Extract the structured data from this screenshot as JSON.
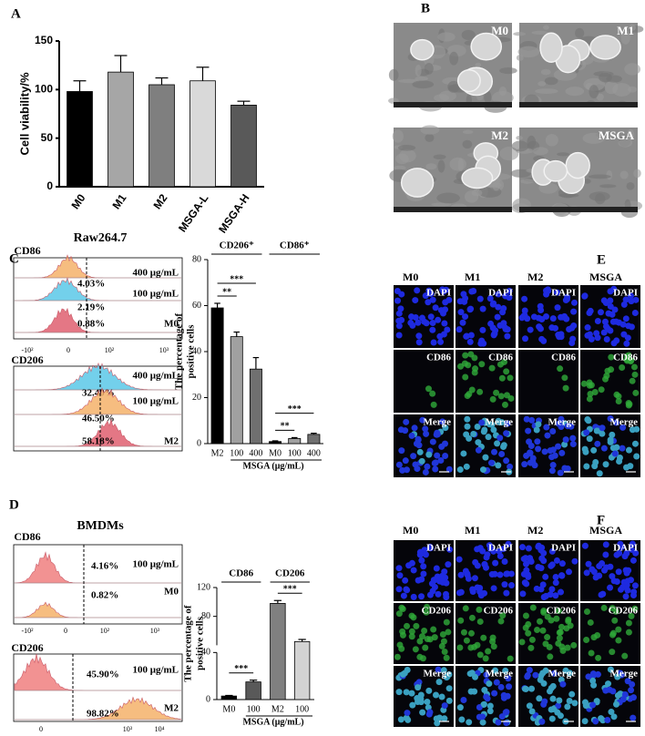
{
  "panel_labels": [
    "A",
    "B",
    "C",
    "D",
    "E",
    "F"
  ],
  "chart_data": [
    {
      "type": "bar",
      "ylabel": "Cell viability/%",
      "categories": [
        "M0",
        "M1",
        "M2",
        "MSGA-L",
        "MSGA-H"
      ],
      "values": [
        98,
        118,
        105,
        109,
        84
      ],
      "errors": [
        11,
        17,
        7,
        14,
        4
      ],
      "colors": [
        "#000000",
        "#a6a6a6",
        "#7f7f7f",
        "#d9d9d9",
        "#595959"
      ],
      "ylim": [
        0,
        150
      ],
      "yticks": [
        0,
        50,
        100,
        150
      ]
    },
    {
      "type": "bar",
      "ylabel": [
        "The percentage of",
        "positive cells"
      ],
      "xlabel": "MSGA (μg/mL)",
      "categories": [
        "M2",
        "100",
        "400",
        "M0",
        "100",
        "400"
      ],
      "values": [
        59,
        46.5,
        32.4,
        0.9,
        2.2,
        4
      ],
      "errors": [
        2,
        2,
        5,
        0.3,
        0.4,
        0.5
      ],
      "colors": [
        "#000000",
        "#a0a0a0",
        "#707070",
        "#000000",
        "#a0a0a0",
        "#707070"
      ],
      "ylim": [
        0,
        80
      ],
      "yticks": [
        0,
        20,
        40,
        60,
        80
      ],
      "groups": [
        {
          "label": "CD206⁺",
          "from": 0,
          "to": 2
        },
        {
          "label": "CD86⁺",
          "from": 3,
          "to": 5
        }
      ],
      "annotations": [
        {
          "label": "**",
          "from": 0,
          "to": 1
        },
        {
          "label": "***",
          "from": 0,
          "to": 2
        },
        {
          "label": "**",
          "from": 3,
          "to": 4
        },
        {
          "label": "***",
          "from": 3,
          "to": 5
        }
      ]
    },
    {
      "type": "bar",
      "ylabel": [
        "The percentage of",
        "positive cells"
      ],
      "xlabel": "MSGA (μg/mL)",
      "categories": [
        "M0",
        "100",
        "M2",
        "100"
      ],
      "values": [
        3,
        15,
        98,
        45
      ],
      "errors": [
        0.5,
        1.5,
        4,
        3
      ],
      "colors": [
        "#000000",
        "#595959",
        "#808080",
        "#d3d3d3"
      ],
      "ylim": [
        0,
        120
      ],
      "ybreak": 40,
      "yticks": [
        0,
        40,
        80,
        120
      ],
      "groups": [
        {
          "label": "CD86",
          "from": 0,
          "to": 1
        },
        {
          "label": "CD206",
          "from": 2,
          "to": 3
        }
      ],
      "annotations": [
        {
          "label": "***",
          "from": 0,
          "to": 1
        },
        {
          "label": "***",
          "from": 2,
          "to": 3
        }
      ]
    }
  ],
  "sem": [
    "M0",
    "M1",
    "M2",
    "MSGA"
  ],
  "flow": [
    {
      "title": "Raw264.7",
      "blocks": [
        {
          "marker": "CD86",
          "ticks": [
            "-10²",
            "0",
            "10²",
            "10³"
          ],
          "rows": [
            {
              "percent": "4.03%",
              "label": "400 μg/mL",
              "color": "#f5b26b"
            },
            {
              "percent": "2.19%",
              "label": "100 μg/mL",
              "color": "#5bc8e8"
            },
            {
              "percent": "0.88%",
              "label": "M0",
              "color": "#e06070"
            }
          ]
        },
        {
          "marker": "CD206",
          "ticks": [],
          "rows": [
            {
              "percent": "32.40%",
              "label": "400 μg/mL",
              "color": "#5bc8e8"
            },
            {
              "percent": "46.50%",
              "label": "100 μg/mL",
              "color": "#f5b26b"
            },
            {
              "percent": "58.18%",
              "label": "M2",
              "color": "#e06070"
            }
          ]
        }
      ]
    },
    {
      "title": "BMDMs",
      "blocks": [
        {
          "marker": "CD86",
          "ticks": [
            "-10²",
            "0",
            "10²",
            "10³"
          ],
          "rows": [
            {
              "percent": "4.16%",
              "label": "100 μg/mL",
              "color": "#f08080"
            },
            {
              "percent": "0.82%",
              "label": "M0",
              "color": "#f5b26b"
            }
          ]
        },
        {
          "marker": "CD206",
          "ticks": [
            "0",
            "10³",
            "10⁴"
          ],
          "rows": [
            {
              "percent": "45.90%",
              "label": "100 μg/mL",
              "color": "#f08080"
            },
            {
              "percent": "98.82%",
              "label": "M2",
              "color": "#f5b26b"
            }
          ]
        }
      ]
    }
  ],
  "fluor": [
    {
      "columns": [
        "M0",
        "M1",
        "M2",
        "MSGA"
      ],
      "rows": [
        "DAPI",
        "CD86",
        "Merge"
      ]
    },
    {
      "columns": [
        "M0",
        "M1",
        "M2",
        "MSGA"
      ],
      "rows": [
        "DAPI",
        "CD206",
        "Merge"
      ]
    }
  ]
}
